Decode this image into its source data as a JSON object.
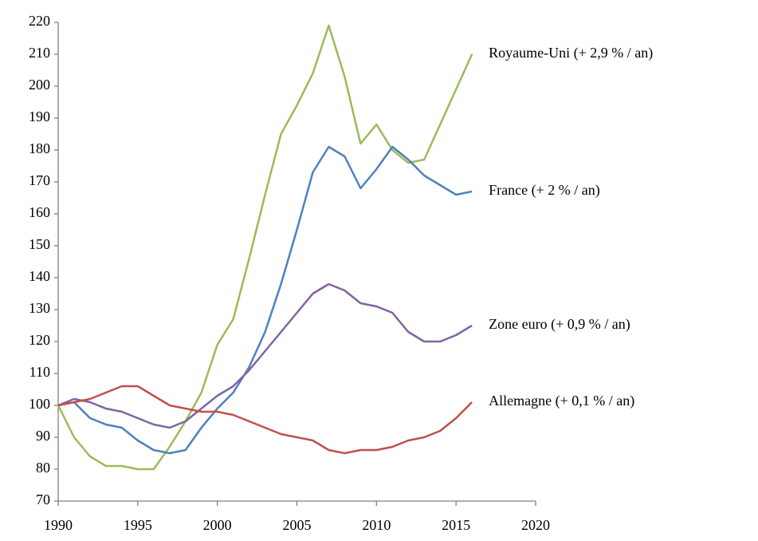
{
  "chart_data": {
    "type": "line",
    "x": [
      1990,
      1991,
      1992,
      1993,
      1994,
      1995,
      1996,
      1997,
      1998,
      1999,
      2000,
      2001,
      2002,
      2003,
      2004,
      2005,
      2006,
      2007,
      2008,
      2009,
      2010,
      2011,
      2012,
      2013,
      2014,
      2015,
      2016
    ],
    "series": [
      {
        "name": "Royaume-Uni (+ 2,9 % / an)",
        "color": "#9bbb59",
        "values": [
          100,
          90,
          84,
          81,
          81,
          80,
          80,
          87,
          95,
          104,
          119,
          127,
          146,
          166,
          185,
          194,
          204,
          219,
          203,
          182,
          188,
          180,
          176,
          177,
          188,
          199,
          210
        ]
      },
      {
        "name": "France (+ 2 % / an)",
        "color": "#4f81bd",
        "values": [
          100,
          101,
          96,
          94,
          93,
          89,
          86,
          85,
          86,
          93,
          99,
          104,
          112,
          123,
          138,
          155,
          173,
          181,
          178,
          168,
          174,
          181,
          177,
          172,
          169,
          166,
          167
        ]
      },
      {
        "name": "Zone euro (+ 0,9 % / an)",
        "color": "#8064a2",
        "values": [
          100,
          102,
          101,
          99,
          98,
          96,
          94,
          93,
          95,
          99,
          103,
          106,
          111,
          117,
          123,
          129,
          135,
          138,
          136,
          132,
          131,
          129,
          123,
          120,
          120,
          122,
          125
        ]
      },
      {
        "name": "Allemagne (+ 0,1 % / an)",
        "color": "#c0504d",
        "values": [
          100,
          101,
          102,
          104,
          106,
          106,
          103,
          100,
          99,
          98,
          98,
          97,
          95,
          93,
          91,
          90,
          89,
          86,
          85,
          86,
          86,
          87,
          89,
          90,
          92,
          96,
          101
        ]
      }
    ],
    "xlim": [
      1990,
      2020
    ],
    "xticks": [
      1990,
      1995,
      2000,
      2005,
      2010,
      2015,
      2020
    ],
    "ylim": [
      70,
      220
    ],
    "yticks": [
      70,
      80,
      90,
      100,
      110,
      120,
      130,
      140,
      150,
      160,
      170,
      180,
      190,
      200,
      210,
      220
    ]
  }
}
